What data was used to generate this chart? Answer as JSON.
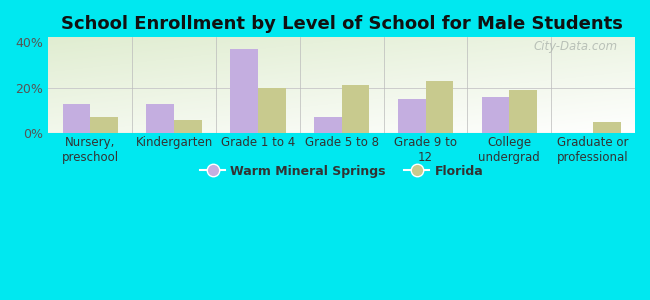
{
  "title": "School Enrollment by Level of School for Male Students",
  "categories": [
    "Nursery,\npreschool",
    "Kindergarten",
    "Grade 1 to 4",
    "Grade 5 to 8",
    "Grade 9 to\n12",
    "College\nundergrad",
    "Graduate or\nprofessional"
  ],
  "warm_mineral_springs": [
    13,
    13,
    37,
    7,
    15,
    16,
    0
  ],
  "florida": [
    7,
    6,
    20,
    21,
    23,
    19,
    5
  ],
  "bar_color_wms": "#c4aee0",
  "bar_color_fl": "#c8ca8e",
  "background_outer": "#00e8f0",
  "ylim": [
    0,
    42
  ],
  "yticks": [
    0,
    20,
    40
  ],
  "ytick_labels": [
    "0%",
    "20%",
    "40%"
  ],
  "legend_wms": "Warm Mineral Springs",
  "legend_fl": "Florida",
  "watermark": "City-Data.com",
  "title_fontsize": 13,
  "tick_fontsize": 8.5,
  "ytick_fontsize": 9
}
